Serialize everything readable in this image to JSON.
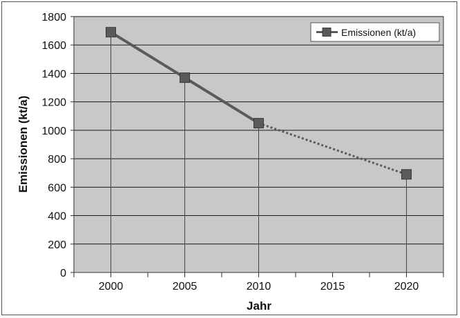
{
  "chart_data": {
    "type": "line",
    "xlabel": "Jahr",
    "ylabel": "Emissionen (kt/a)",
    "x_ticks": [
      "2000",
      "2005",
      "2010",
      "2015",
      "2020"
    ],
    "ylim": [
      0,
      1800
    ],
    "y_ticks": [
      "0",
      "200",
      "400",
      "600",
      "800",
      "1000",
      "1200",
      "1400",
      "1600",
      "1800"
    ],
    "grid": true,
    "legend_position": "top-right",
    "series": [
      {
        "name": "Emissionen (kt/a)",
        "points": [
          {
            "x": 2000,
            "y": 1690,
            "line_to_next": "solid"
          },
          {
            "x": 2005,
            "y": 1370,
            "line_to_next": "solid"
          },
          {
            "x": 2010,
            "y": 1050,
            "line_to_next": "dotted"
          },
          {
            "x": 2020,
            "y": 690,
            "line_to_next": "none"
          }
        ]
      }
    ],
    "colors": {
      "plot_background": "#c8c8c8",
      "series": "#5a5a5a",
      "grid": "#1a1a1a"
    }
  }
}
